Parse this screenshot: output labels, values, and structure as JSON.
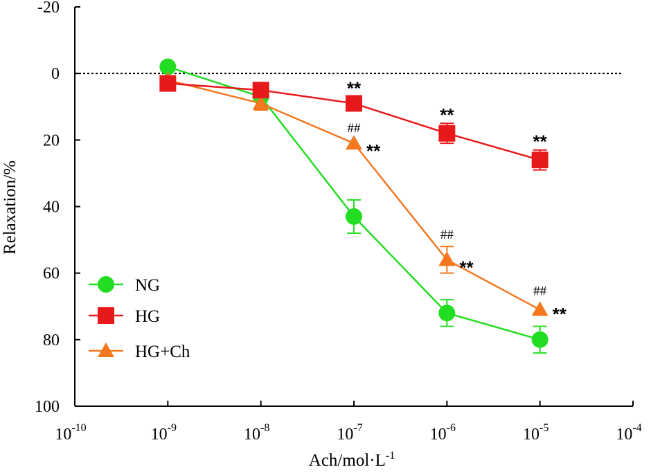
{
  "chart_data": {
    "type": "line",
    "title": "",
    "xlabel": "Ach/mol·L",
    "xlabel_sup": "-1",
    "ylabel": "Relaxation/%",
    "xscale": "log",
    "xlim_exp": [
      -10,
      -4
    ],
    "ylim": [
      -20,
      100
    ],
    "y_inverted": true,
    "x_ticks": [
      {
        "base": "10",
        "exp": "-10"
      },
      {
        "base": "10",
        "exp": "-9"
      },
      {
        "base": "10",
        "exp": "-8"
      },
      {
        "base": "10",
        "exp": "-7"
      },
      {
        "base": "10",
        "exp": "-6"
      },
      {
        "base": "10",
        "exp": "-5"
      },
      {
        "base": "10",
        "exp": "-4"
      }
    ],
    "y_ticks": [
      "-20",
      "0",
      "20",
      "40",
      "60",
      "80",
      "100"
    ],
    "reference_line": {
      "y": 0,
      "style": "dotted"
    },
    "legend": {
      "position": "bottom-left"
    },
    "series": [
      {
        "name": "NG",
        "color": "#22dd22",
        "marker": "circle",
        "x_exp": [
          -9,
          -8,
          -7,
          -6,
          -5
        ],
        "values": [
          -2,
          7,
          43,
          72,
          80
        ],
        "errors": [
          0,
          0,
          5,
          4,
          4
        ]
      },
      {
        "name": "HG",
        "color": "#e8191b",
        "marker": "square",
        "x_exp": [
          -9,
          -8,
          -7,
          -6,
          -5
        ],
        "values": [
          3,
          5,
          9,
          18,
          26
        ],
        "errors": [
          0,
          0,
          2,
          3,
          3
        ]
      },
      {
        "name": "HG+Ch",
        "color": "#f4781f",
        "marker": "triangle",
        "x_exp": [
          -9,
          -8,
          -7,
          -6,
          -5
        ],
        "values": [
          2,
          9,
          21,
          56,
          71
        ],
        "errors": [
          0,
          2,
          0,
          4,
          0
        ]
      }
    ],
    "annotations": [
      {
        "text": "**",
        "kind": "star",
        "x_exp": -7,
        "y": 3,
        "align": "above"
      },
      {
        "text": "**",
        "kind": "star",
        "x_exp": -6,
        "y": 11,
        "align": "above"
      },
      {
        "text": "**",
        "kind": "star",
        "x_exp": -5,
        "y": 19,
        "align": "above"
      },
      {
        "text": "##",
        "kind": "hash",
        "x_exp": -7,
        "y": 16,
        "align": "above"
      },
      {
        "text": "**",
        "kind": "star",
        "x_exp": -7,
        "y": 21,
        "align": "right"
      },
      {
        "text": "##",
        "kind": "hash",
        "x_exp": -6,
        "y": 48,
        "align": "above"
      },
      {
        "text": "**",
        "kind": "star",
        "x_exp": -6,
        "y": 56,
        "align": "right"
      },
      {
        "text": "##",
        "kind": "hash",
        "x_exp": -5,
        "y": 65,
        "align": "above"
      },
      {
        "text": "**",
        "kind": "star",
        "x_exp": -5,
        "y": 70,
        "align": "right"
      }
    ]
  }
}
